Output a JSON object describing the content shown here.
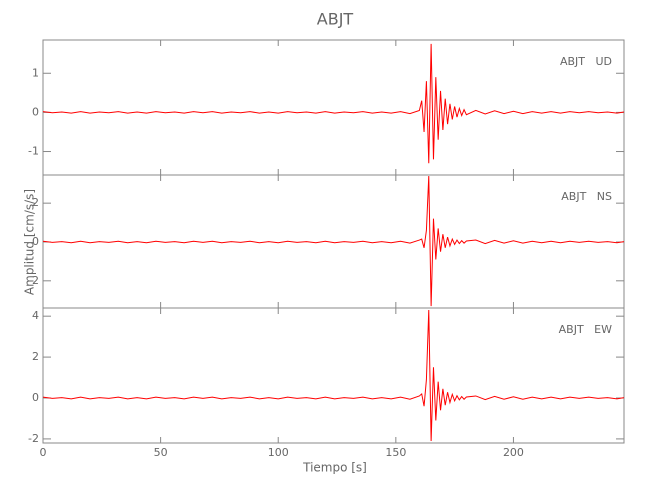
{
  "chart_data": [
    {
      "type": "line",
      "title": "ABJT",
      "x": [
        0,
        4,
        8,
        12,
        16,
        20,
        24,
        28,
        32,
        36,
        40,
        44,
        48,
        52,
        56,
        60,
        64,
        68,
        72,
        76,
        80,
        84,
        88,
        92,
        96,
        100,
        104,
        108,
        112,
        116,
        120,
        124,
        128,
        132,
        136,
        140,
        144,
        148,
        152,
        156,
        160,
        161,
        162,
        163,
        164,
        165,
        166,
        167,
        168,
        169,
        170,
        171,
        172,
        173,
        174,
        175,
        176,
        177,
        178,
        179,
        180,
        184,
        188,
        192,
        196,
        200,
        204,
        208,
        212,
        216,
        220,
        224,
        228,
        232,
        236,
        240,
        244,
        247
      ],
      "xlim": [
        0,
        247
      ],
      "ylim": [
        -1.6,
        1.85
      ],
      "yticks": [
        -1,
        0,
        1
      ],
      "series": [
        {
          "name": "ABJT   UD",
          "color": "#ff0000",
          "values": [
            0.02,
            -0.01,
            0.01,
            -0.02,
            0.02,
            -0.02,
            0.01,
            -0.01,
            0.02,
            -0.02,
            0.01,
            -0.02,
            0.02,
            -0.01,
            0.01,
            -0.02,
            0.02,
            -0.01,
            0.02,
            -0.02,
            0.01,
            -0.01,
            0.02,
            -0.02,
            0.01,
            -0.02,
            0.02,
            -0.01,
            0.01,
            -0.02,
            0.02,
            -0.02,
            0.01,
            -0.01,
            0.02,
            -0.02,
            0.01,
            -0.02,
            0.02,
            -0.03,
            0.05,
            0.3,
            -0.5,
            0.8,
            -1.3,
            1.75,
            -1.2,
            0.9,
            -0.7,
            0.55,
            -0.45,
            0.35,
            -0.3,
            0.22,
            -0.18,
            0.15,
            -0.12,
            0.1,
            -0.08,
            0.07,
            -0.06,
            0.05,
            -0.04,
            0.04,
            -0.03,
            0.03,
            -0.03,
            0.02,
            -0.02,
            0.02,
            -0.02,
            0.02,
            -0.01,
            0.02,
            -0.01,
            0.01,
            -0.02,
            0.01
          ]
        }
      ]
    },
    {
      "type": "line",
      "y_label": "Amplitud [cm/s/s]",
      "x": [
        0,
        4,
        8,
        12,
        16,
        20,
        24,
        28,
        32,
        36,
        40,
        44,
        48,
        52,
        56,
        60,
        64,
        68,
        72,
        76,
        80,
        84,
        88,
        92,
        96,
        100,
        104,
        108,
        112,
        116,
        120,
        124,
        128,
        132,
        136,
        140,
        144,
        148,
        152,
        156,
        160,
        161,
        162,
        163,
        164,
        165,
        166,
        167,
        168,
        169,
        170,
        171,
        172,
        173,
        174,
        175,
        176,
        177,
        178,
        179,
        180,
        184,
        188,
        192,
        196,
        200,
        204,
        208,
        212,
        216,
        220,
        224,
        228,
        232,
        236,
        240,
        244,
        247
      ],
      "xlim": [
        0,
        247
      ],
      "ylim": [
        -3.4,
        3.45
      ],
      "yticks": [
        -2,
        0,
        2
      ],
      "series": [
        {
          "name": "ABJT   NS",
          "color": "#ff0000",
          "values": [
            0.04,
            -0.02,
            0.02,
            -0.04,
            0.04,
            -0.04,
            0.02,
            -0.02,
            0.04,
            -0.04,
            0.02,
            -0.04,
            0.04,
            -0.02,
            0.02,
            -0.04,
            0.04,
            -0.02,
            0.04,
            -0.04,
            0.02,
            -0.02,
            0.04,
            -0.04,
            0.02,
            -0.04,
            0.04,
            -0.02,
            0.02,
            -0.04,
            0.04,
            -0.04,
            0.02,
            -0.02,
            0.04,
            -0.04,
            0.02,
            -0.04,
            0.04,
            -0.06,
            0.1,
            0.15,
            -0.3,
            0.6,
            3.4,
            -3.3,
            1.2,
            -0.9,
            0.7,
            -0.5,
            0.4,
            -0.3,
            0.25,
            -0.2,
            0.15,
            -0.12,
            0.1,
            -0.08,
            0.07,
            -0.06,
            0.05,
            0.1,
            -0.08,
            0.08,
            -0.06,
            0.06,
            -0.06,
            0.04,
            -0.04,
            0.04,
            -0.04,
            0.04,
            -0.02,
            0.04,
            -0.02,
            0.02,
            -0.04,
            0.02
          ]
        }
      ]
    },
    {
      "type": "line",
      "x_label": "Tiempo [s]",
      "x": [
        0,
        4,
        8,
        12,
        16,
        20,
        24,
        28,
        32,
        36,
        40,
        44,
        48,
        52,
        56,
        60,
        64,
        68,
        72,
        76,
        80,
        84,
        88,
        92,
        96,
        100,
        104,
        108,
        112,
        116,
        120,
        124,
        128,
        132,
        136,
        140,
        144,
        148,
        152,
        156,
        160,
        161,
        162,
        163,
        164,
        165,
        166,
        167,
        168,
        169,
        170,
        171,
        172,
        173,
        174,
        175,
        176,
        177,
        178,
        179,
        180,
        184,
        188,
        192,
        196,
        200,
        204,
        208,
        212,
        216,
        220,
        224,
        228,
        232,
        236,
        240,
        244,
        247
      ],
      "xlim": [
        0,
        247
      ],
      "xticks": [
        0,
        50,
        100,
        150,
        200
      ],
      "ylim": [
        -2.2,
        4.4
      ],
      "yticks": [
        -2,
        0,
        2,
        4
      ],
      "series": [
        {
          "name": "ABJT   EW",
          "color": "#ff0000",
          "values": [
            0.04,
            -0.02,
            0.02,
            -0.04,
            0.04,
            -0.04,
            0.02,
            -0.02,
            0.04,
            -0.04,
            0.02,
            -0.04,
            0.04,
            -0.02,
            0.02,
            -0.04,
            0.04,
            -0.02,
            0.04,
            -0.04,
            0.02,
            -0.02,
            0.04,
            -0.04,
            0.02,
            -0.04,
            0.04,
            -0.02,
            0.02,
            -0.04,
            0.04,
            -0.04,
            0.02,
            -0.02,
            0.04,
            -0.04,
            0.02,
            -0.04,
            0.04,
            -0.06,
            0.1,
            0.2,
            -0.4,
            0.9,
            4.3,
            -2.1,
            1.5,
            -1.1,
            0.8,
            -0.6,
            0.45,
            -0.35,
            0.28,
            -0.22,
            0.18,
            -0.14,
            0.11,
            -0.09,
            0.07,
            -0.06,
            0.05,
            0.1,
            -0.08,
            0.08,
            -0.06,
            0.06,
            -0.06,
            0.04,
            -0.04,
            0.04,
            -0.04,
            0.04,
            -0.02,
            0.04,
            -0.02,
            0.02,
            -0.04,
            0.02
          ]
        }
      ]
    }
  ]
}
